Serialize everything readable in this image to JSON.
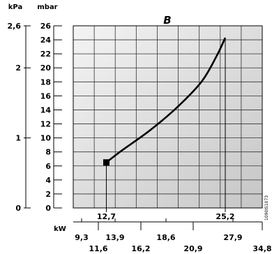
{
  "chart_data": {
    "type": "line",
    "title": "B",
    "code": "1090IS1073",
    "units": {
      "pressure_mbar": "mbar",
      "pressure_kpa": "kPa",
      "power": "kW"
    },
    "mbar_axis": {
      "range": [
        0,
        26
      ],
      "ticks": [
        0,
        2,
        4,
        6,
        8,
        10,
        12,
        14,
        16,
        18,
        20,
        22,
        24,
        26
      ]
    },
    "kpa_axis": {
      "range": [
        0,
        2.6
      ],
      "ticks": [
        {
          "label": "0",
          "mbar": 0
        },
        {
          "label": "1",
          "mbar": 10
        },
        {
          "label": "2",
          "mbar": 20
        },
        {
          "label": "2,6",
          "mbar": 26
        }
      ]
    },
    "grid": {
      "vertical_lines": 9,
      "horizontal_step": 2
    },
    "curve": {
      "x": [
        12.7,
        14.5,
        17,
        19.5,
        22,
        24,
        25.2
      ],
      "y": [
        6.5,
        8.2,
        11.0,
        14.3,
        18.0,
        21.6,
        24.3
      ],
      "start_marker": "square"
    },
    "inner_axis_ticks": [
      {
        "label": "12,7",
        "kw": 12.7
      },
      {
        "label": "25,2",
        "kw": 25.2
      }
    ],
    "kw_axis_ticks": [
      {
        "label": "9,3",
        "kw": 9.3,
        "row": "upper"
      },
      {
        "label": "11,6",
        "kw": 11.6,
        "row": "lower"
      },
      {
        "label": "13,9",
        "kw": 13.9,
        "row": "upper"
      },
      {
        "label": "16,2",
        "kw": 16.2,
        "row": "lower"
      },
      {
        "label": "18,6",
        "kw": 18.6,
        "row": "upper"
      },
      {
        "label": "20,9",
        "kw": 20.9,
        "row": "lower"
      },
      {
        "label": "27,9",
        "kw": 27.9,
        "row": "upper"
      },
      {
        "label": "34,8",
        "kw": 34.8,
        "row": "lower"
      }
    ]
  }
}
